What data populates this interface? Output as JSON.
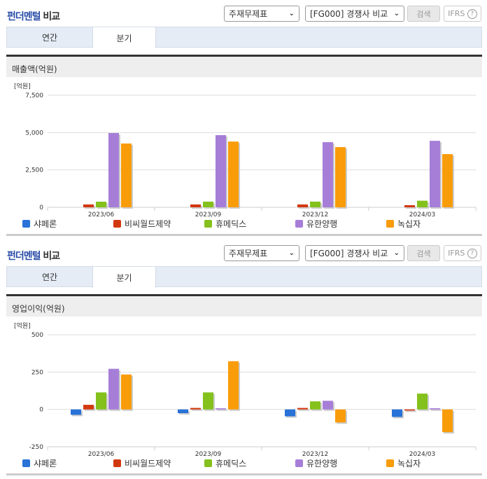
{
  "header": {
    "title_blue": "펀더멘털",
    "title_dark": "비교",
    "select_statement": "주재무제표",
    "select_compare": "[FG000] 경쟁사 비교",
    "search_label": "검색",
    "ifrs_label": "IFRS",
    "help_icon": "question-circle-icon"
  },
  "tabs": [
    {
      "label": "연간"
    },
    {
      "label": "분기",
      "active": true
    }
  ],
  "colors": {
    "샤페론": "#2872d8",
    "비씨월드제약": "#d2380f",
    "휴메딕스": "#84c11c",
    "유한양행": "#a67ed8",
    "녹십자": "#f99c0a"
  },
  "chart_data": [
    {
      "type": "bar",
      "title": "매출액(억원)",
      "unit": "[억원]",
      "ylim": [
        0,
        7500
      ],
      "yticks": [
        "7,500",
        "5,000",
        "2,500",
        "0"
      ],
      "ytick_values": [
        7500,
        5000,
        2500,
        0
      ],
      "categories": [
        "2023/06",
        "2023/09",
        "2023/12",
        "2024/03"
      ],
      "series": [
        {
          "name": "샤페론",
          "values": [
            0,
            0,
            0,
            0
          ]
        },
        {
          "name": "비씨월드제약",
          "values": [
            190,
            190,
            190,
            140
          ]
        },
        {
          "name": "휴메딕스",
          "values": [
            375,
            380,
            380,
            440
          ]
        },
        {
          "name": "유한양행",
          "values": [
            4970,
            4830,
            4360,
            4450
          ]
        },
        {
          "name": "녹십자",
          "values": [
            4270,
            4400,
            4030,
            3560
          ]
        }
      ],
      "grid": true,
      "legend": "bottom"
    },
    {
      "type": "bar",
      "title": "영업이익(억원)",
      "unit": "[억원]",
      "ylim": [
        -250,
        500
      ],
      "yticks": [
        "500",
        "250",
        "0",
        "-250"
      ],
      "ytick_values": [
        500,
        250,
        0,
        -250
      ],
      "categories": [
        "2023/06",
        "2023/09",
        "2023/12",
        "2024/03"
      ],
      "series": [
        {
          "name": "샤페론",
          "values": [
            -36,
            -25,
            -46,
            -50
          ]
        },
        {
          "name": "비씨월드제약",
          "values": [
            31,
            10,
            10,
            -8
          ]
        },
        {
          "name": "휴메딕스",
          "values": [
            114,
            114,
            54,
            106
          ]
        },
        {
          "name": "유한양행",
          "values": [
            272,
            8,
            58,
            8
          ]
        },
        {
          "name": "녹십자",
          "values": [
            234,
            323,
            -87,
            -152
          ]
        }
      ],
      "grid": true,
      "legend": "bottom"
    }
  ]
}
